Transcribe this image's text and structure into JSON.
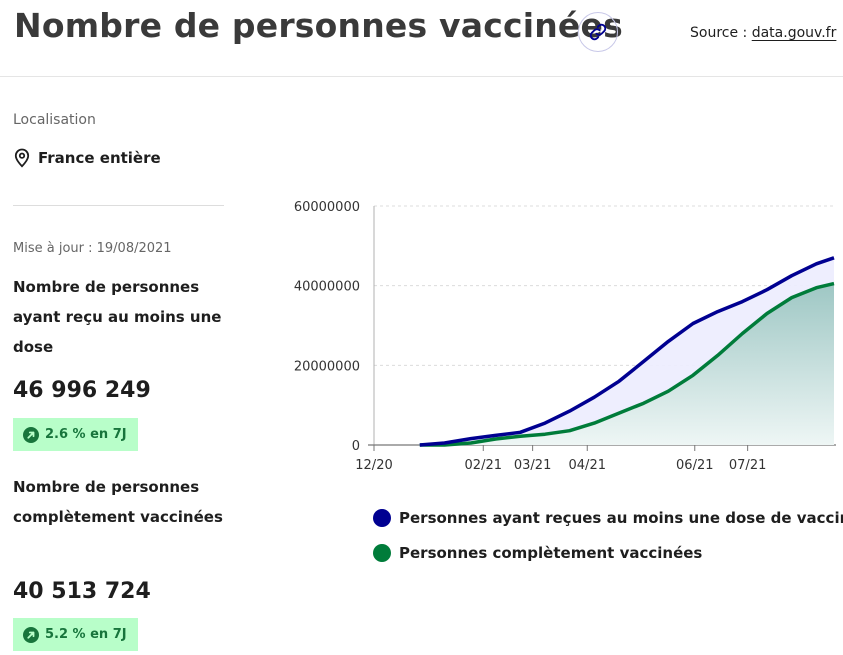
{
  "header": {
    "title": "Nombre de personnes vaccinées",
    "source_label": "Source :",
    "source_link": "data.gouv.fr"
  },
  "location": {
    "label": "Localisation",
    "value": "France entière"
  },
  "update": "Mise à jour : 19/08/2021",
  "kpis": [
    {
      "label": "Nombre de personnes ayant reçu au moins une dose",
      "value": "46 996 249",
      "trend": "2.6 % en 7J"
    },
    {
      "label": "Nombre de personnes complètement vaccinées",
      "value": "40 513 724",
      "trend": "5.2 % en 7J"
    }
  ],
  "colors": {
    "first_dose": "#000091",
    "complete": "#007c3a",
    "badge_bg": "#b8fec9",
    "badge_text": "#18753c"
  },
  "icons": {
    "link": "link-icon",
    "location": "location-pin-icon",
    "trend": "arrow-up-right-icon"
  },
  "chart_data": {
    "type": "area",
    "x": [
      "2020-12-27",
      "2021-01-10",
      "2021-01-25",
      "2021-02-08",
      "2021-02-22",
      "2021-03-08",
      "2021-03-22",
      "2021-04-05",
      "2021-04-19",
      "2021-05-03",
      "2021-05-17",
      "2021-05-31",
      "2021-06-14",
      "2021-06-28",
      "2021-07-12",
      "2021-07-26",
      "2021-08-09",
      "2021-08-19"
    ],
    "series": [
      {
        "name": "Personnes ayant reçues au moins une dose de vaccin",
        "values": [
          0,
          500000,
          1600000,
          2400000,
          3200000,
          5500000,
          8500000,
          12000000,
          16000000,
          21000000,
          26000000,
          30500000,
          33500000,
          36000000,
          39000000,
          42500000,
          45500000,
          46996249
        ]
      },
      {
        "name": "Personnes complètement vaccinées",
        "values": [
          0,
          0,
          500000,
          1500000,
          2200000,
          2700000,
          3600000,
          5500000,
          8000000,
          10500000,
          13500000,
          17500000,
          22500000,
          28000000,
          33000000,
          37000000,
          39500000,
          40513724
        ]
      }
    ],
    "tick_dates": [
      "2020-12-01",
      "2021-02-01",
      "2021-03-01",
      "2021-04-01",
      "2021-06-01",
      "2021-07-01"
    ],
    "tick_labels": [
      "12/20",
      "02/21",
      "03/21",
      "04/21",
      "06/21",
      "07/21"
    ],
    "y_ticks": [
      0,
      20000000,
      40000000,
      60000000
    ],
    "y_tick_labels": [
      "0",
      "20000000",
      "40000000",
      "60000000"
    ],
    "ylim": [
      0,
      60000000
    ],
    "xlim": [
      "2020-12-01",
      "2021-08-19"
    ],
    "grid": true
  }
}
